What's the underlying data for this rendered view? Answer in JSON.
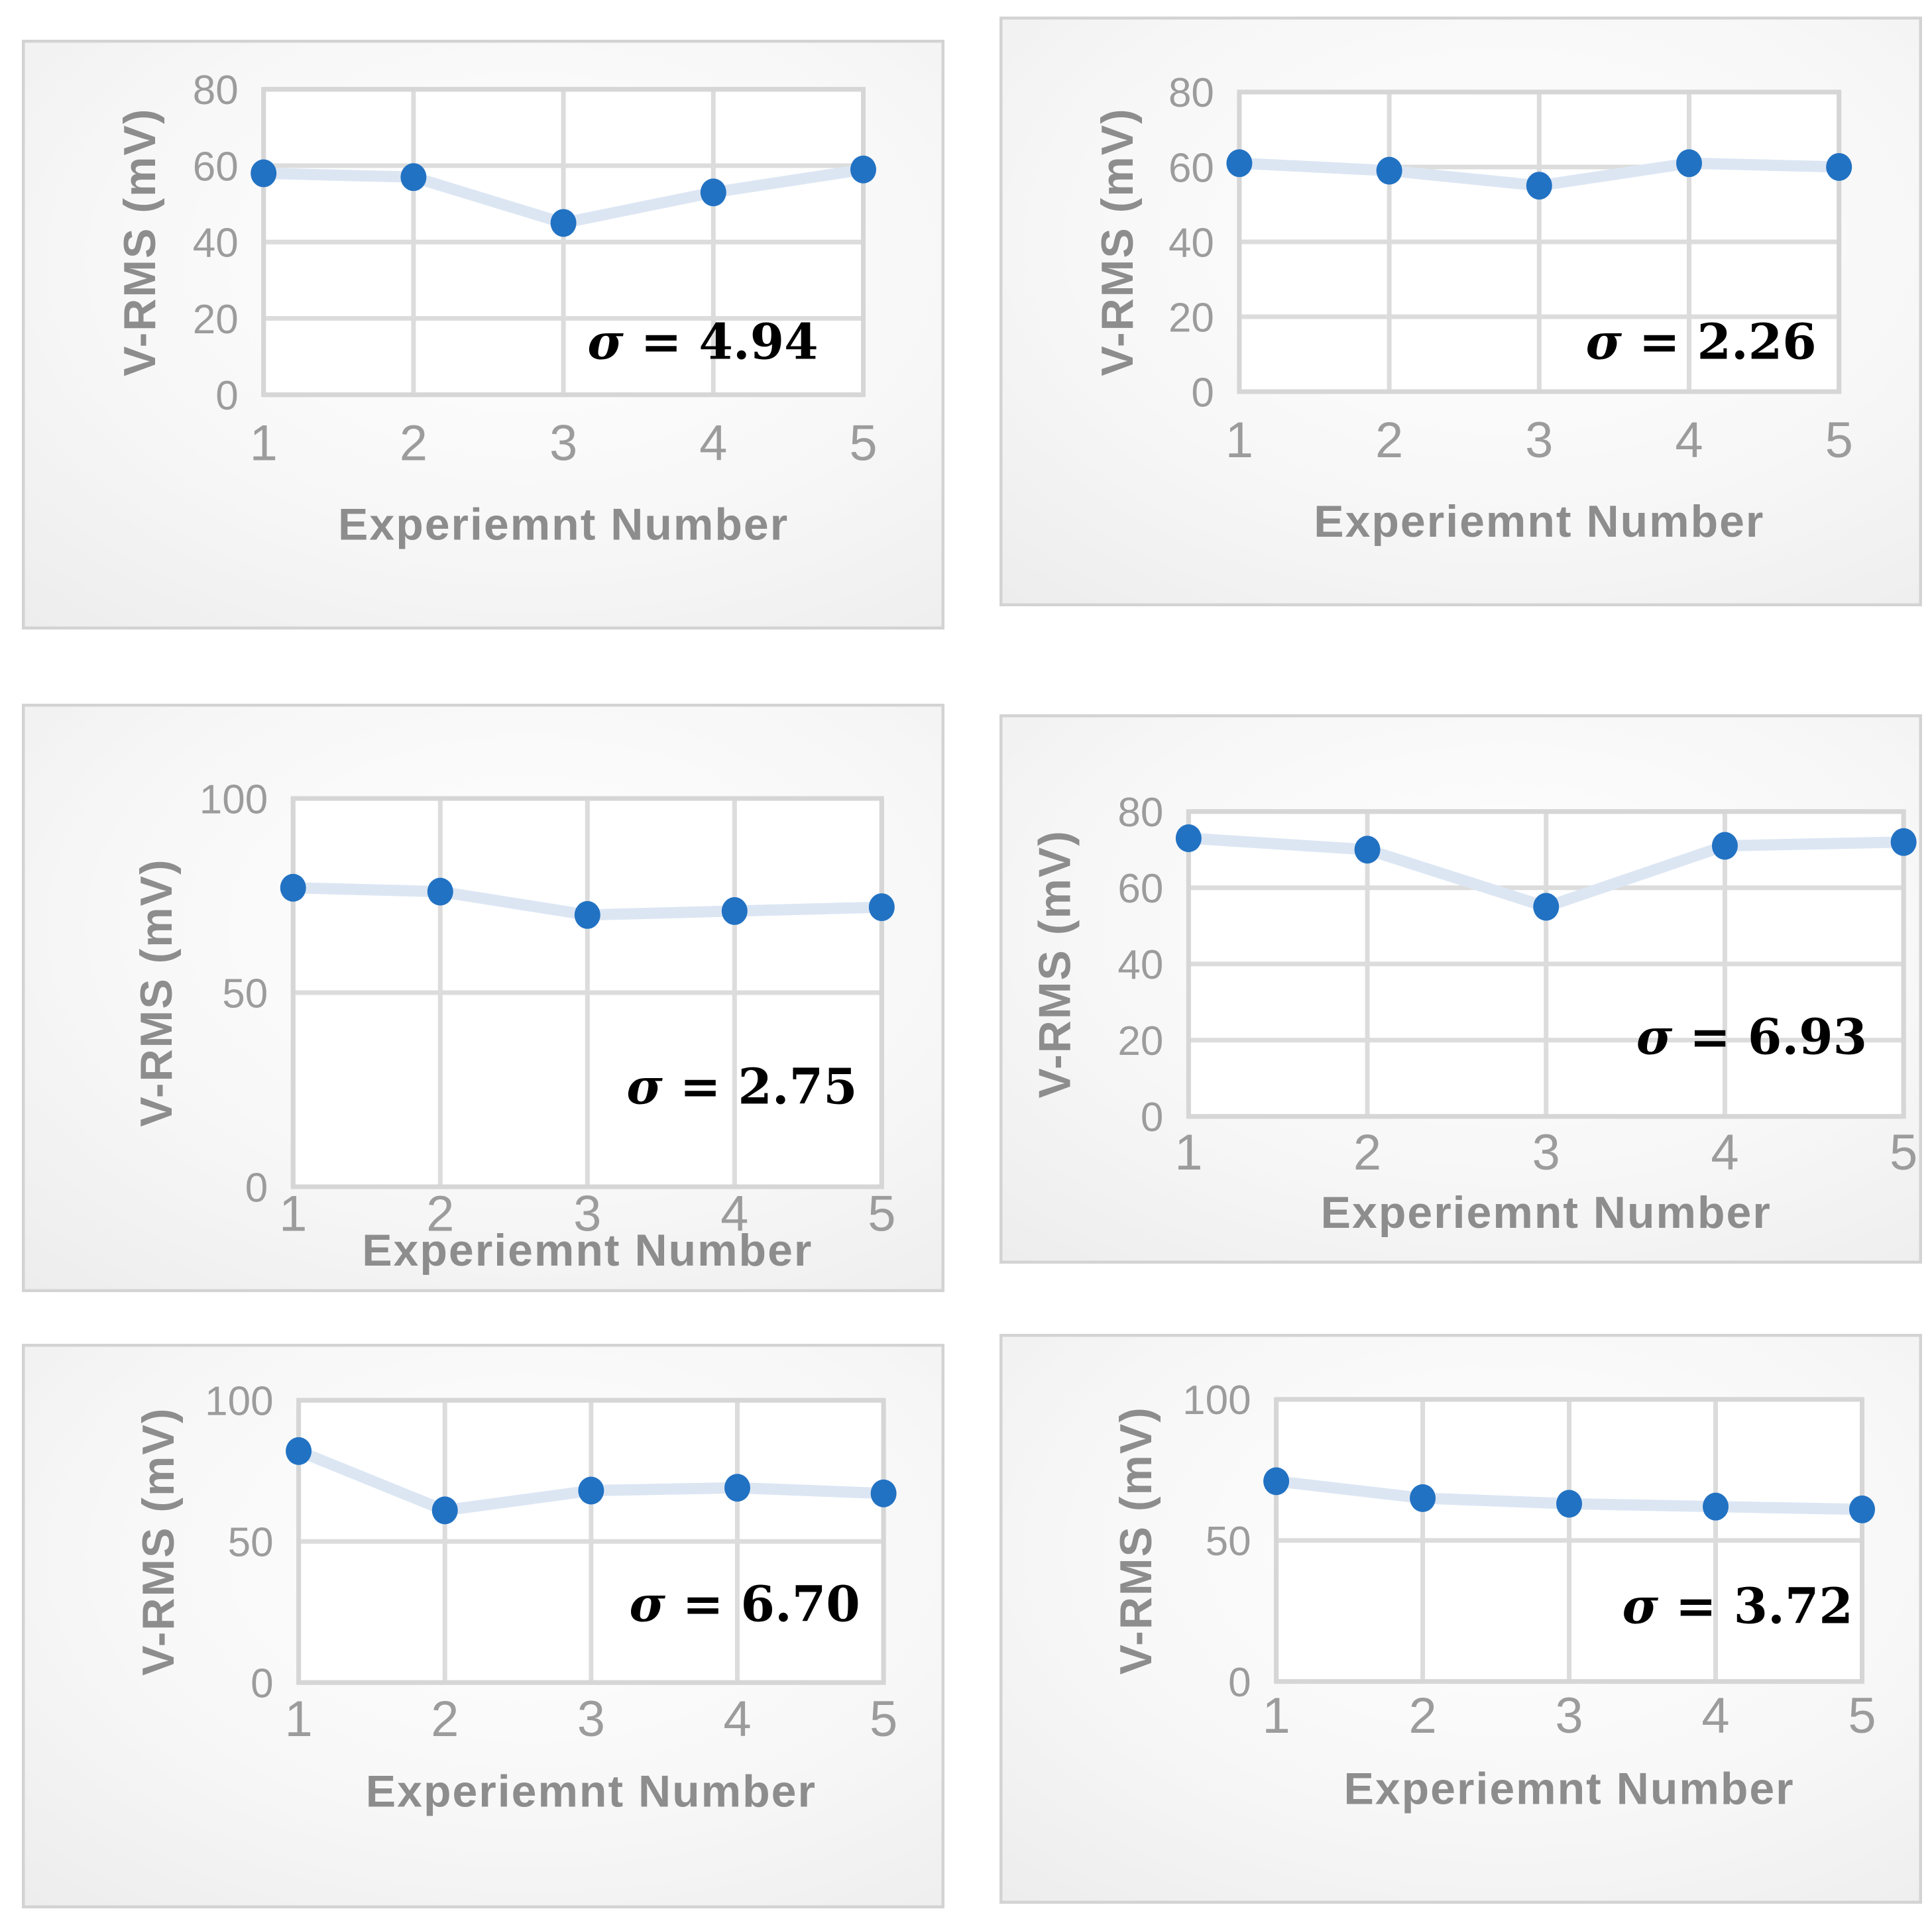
{
  "page": {
    "background_color": "#ffffff"
  },
  "colors": {
    "marker": "#2272c3",
    "line": "#dce6f3",
    "grid": "#dcdcdc",
    "plot_border": "#d6d6d6",
    "plot_fill": "#ffffff",
    "panel_border": "#d3d3d3",
    "panel_bg_center": "#ffffff",
    "panel_bg_mid": "#f7f7f7",
    "panel_bg_edge": "#ececec",
    "tick_label": "#9c9c9c",
    "axis_title": "#8d8d8d",
    "annotation": "#000000"
  },
  "chart_data": [
    {
      "id": "top-left",
      "type": "line",
      "x": [
        1,
        2,
        3,
        4,
        5
      ],
      "values": [
        58,
        57,
        45,
        53,
        59
      ],
      "categories": [
        "1",
        "2",
        "3",
        "4",
        "5"
      ],
      "xlabel": "Experiemnt Number",
      "ylabel": "V-RMS (mV)",
      "ylim": [
        0,
        80
      ],
      "yticks": [
        0,
        20,
        40,
        60,
        80
      ],
      "grid": true,
      "legend": false,
      "annotation": "σ = 4.94",
      "annotation_symbol": "σ",
      "annotation_value": "4.94"
    },
    {
      "id": "top-right",
      "type": "line",
      "x": [
        1,
        2,
        3,
        4,
        5
      ],
      "values": [
        61,
        59,
        55,
        61,
        60
      ],
      "categories": [
        "1",
        "2",
        "3",
        "4",
        "5"
      ],
      "xlabel": "Experiemnt Number",
      "ylabel": "V-RMS (mV)",
      "ylim": [
        0,
        80
      ],
      "yticks": [
        0,
        20,
        40,
        60,
        80
      ],
      "grid": true,
      "legend": false,
      "annotation": "σ = 2.26",
      "annotation_symbol": "σ",
      "annotation_value": "2.26"
    },
    {
      "id": "middle-left",
      "type": "line",
      "x": [
        1,
        2,
        3,
        4,
        5
      ],
      "values": [
        77,
        76,
        70,
        71,
        72
      ],
      "categories": [
        "1",
        "2",
        "3",
        "4",
        "5"
      ],
      "xlabel": "Experiemnt Number",
      "ylabel": "V-RMS (mV)",
      "ylim": [
        0,
        100
      ],
      "yticks": [
        0,
        50,
        100
      ],
      "grid": true,
      "legend": false,
      "annotation": "σ = 2.75",
      "annotation_symbol": "σ",
      "annotation_value": "2.75"
    },
    {
      "id": "middle-right",
      "type": "line",
      "x": [
        1,
        2,
        3,
        4,
        5
      ],
      "values": [
        73,
        70,
        55,
        71,
        72
      ],
      "categories": [
        "1",
        "2",
        "3",
        "4",
        "5"
      ],
      "xlabel": "Experiemnt Number",
      "ylabel": "V-RMS (mV)",
      "ylim": [
        0,
        80
      ],
      "yticks": [
        0,
        20,
        40,
        60,
        80
      ],
      "grid": true,
      "legend": false,
      "annotation": "σ = 6.93",
      "annotation_symbol": "σ",
      "annotation_value": "6.93"
    },
    {
      "id": "bottom-left",
      "type": "line",
      "x": [
        1,
        2,
        3,
        4,
        5
      ],
      "values": [
        82,
        61,
        68,
        69,
        67
      ],
      "categories": [
        "1",
        "2",
        "3",
        "4",
        "5"
      ],
      "xlabel": "Experiemnt Number",
      "ylabel": "V-RMS (mV)",
      "ylim": [
        0,
        100
      ],
      "yticks": [
        0,
        50,
        100
      ],
      "grid": true,
      "legend": false,
      "annotation": "σ = 6.70",
      "annotation_symbol": "σ",
      "annotation_value": "6.70"
    },
    {
      "id": "bottom-right",
      "type": "line",
      "x": [
        1,
        2,
        3,
        4,
        5
      ],
      "values": [
        71,
        65,
        63,
        62,
        61
      ],
      "categories": [
        "1",
        "2",
        "3",
        "4",
        "5"
      ],
      "xlabel": "Experiemnt Number",
      "ylabel": "V-RMS (mV)",
      "ylim": [
        0,
        100
      ],
      "yticks": [
        0,
        50,
        100
      ],
      "grid": true,
      "legend": false,
      "annotation": "σ = 3.72",
      "annotation_symbol": "σ",
      "annotation_value": "3.72"
    }
  ]
}
